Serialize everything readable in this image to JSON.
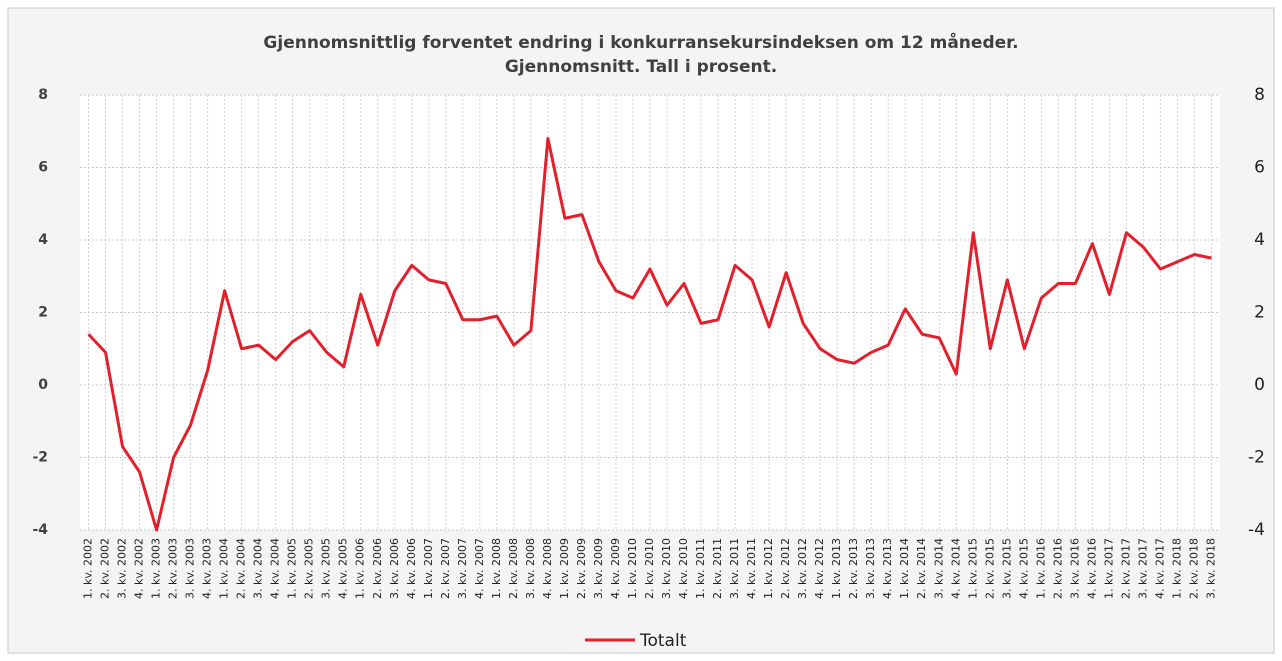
{
  "chart_data": {
    "type": "line",
    "title": [
      "Gjennomsnittlig forventet endring i konkurransekursindeksen om 12 måneder.",
      "Gjennomsnitt. Tall i prosent."
    ],
    "categories": [
      "1. kv. 2002",
      "2. kv. 2002",
      "3. kv. 2002",
      "4. kv. 2002",
      "1. kv. 2003",
      "2. kv. 2003",
      "3. kv. 2003",
      "4. kv. 2003",
      "1. kv. 2004",
      "2. kv. 2004",
      "3. kv. 2004",
      "4. kv. 2004",
      "1. kv. 2005",
      "2. kv. 2005",
      "3. kv. 2005",
      "4. kv. 2005",
      "1. kv. 2006",
      "2. kv. 2006",
      "3. kv. 2006",
      "4. kv. 2006",
      "1. kv. 2007",
      "2. kv. 2007",
      "3. kv. 2007",
      "4. kv. 2007",
      "1. kv. 2008",
      "2. kv. 2008",
      "3. kv. 2008",
      "4. kv. 2008",
      "1. kv. 2009",
      "2. kv. 2009",
      "3. kv. 2009",
      "4. kv. 2009",
      "1. kv. 2010",
      "2. kv. 2010",
      "3. kv. 2010",
      "4. kv. 2010",
      "1. kv. 2011",
      "2. kv. 2011",
      "3. kv. 2011",
      "4. kv. 2011",
      "1. kv. 2012",
      "2. kv. 2012",
      "3. kv. 2012",
      "4. kv. 2012",
      "1. kv. 2013",
      "2. kv. 2013",
      "3. kv. 2013",
      "4. kv. 2013",
      "1. kv. 2014",
      "2. kv. 2014",
      "3. kv. 2014",
      "4. kv. 2014",
      "1. kv. 2015",
      "2. kv. 2015",
      "3. kv. 2015",
      "4. kv. 2015",
      "1. kv. 2016",
      "2. kv. 2016",
      "3. kv. 2016",
      "4. kv. 2016",
      "1. kv. 2017",
      "2. kv. 2017",
      "3. kv. 2017",
      "4. kv. 2017",
      "1. kv. 2018",
      "2. kv. 2018",
      "3. kv. 2018"
    ],
    "series": [
      {
        "name": "Totalt",
        "color": "#e2202c",
        "values": [
          1.4,
          0.9,
          -1.7,
          -2.4,
          -4.0,
          -2.0,
          -1.1,
          0.4,
          2.6,
          1.0,
          1.1,
          0.7,
          1.2,
          1.5,
          0.9,
          0.5,
          2.5,
          1.1,
          2.6,
          3.3,
          2.9,
          2.8,
          1.8,
          1.8,
          1.9,
          1.1,
          1.5,
          6.8,
          4.6,
          4.7,
          3.4,
          2.6,
          2.4,
          3.2,
          2.2,
          2.8,
          1.7,
          1.8,
          3.3,
          2.9,
          1.6,
          3.1,
          1.7,
          1.0,
          0.7,
          0.6,
          0.9,
          1.1,
          2.1,
          1.4,
          1.3,
          0.3,
          4.2,
          1.0,
          2.9,
          1.0,
          2.4,
          2.8,
          2.8,
          3.9,
          2.5,
          4.2,
          3.8,
          3.2,
          3.4,
          3.6,
          3.5
        ]
      }
    ],
    "ylim": [
      -4,
      8
    ],
    "yticks": [
      -4,
      -2,
      0,
      2,
      4,
      6,
      8
    ],
    "y2lim": [
      -4,
      8
    ],
    "y2ticks": [
      -4,
      -2,
      0,
      2,
      4,
      6,
      8
    ],
    "grid": true,
    "legend": "bottom"
  }
}
